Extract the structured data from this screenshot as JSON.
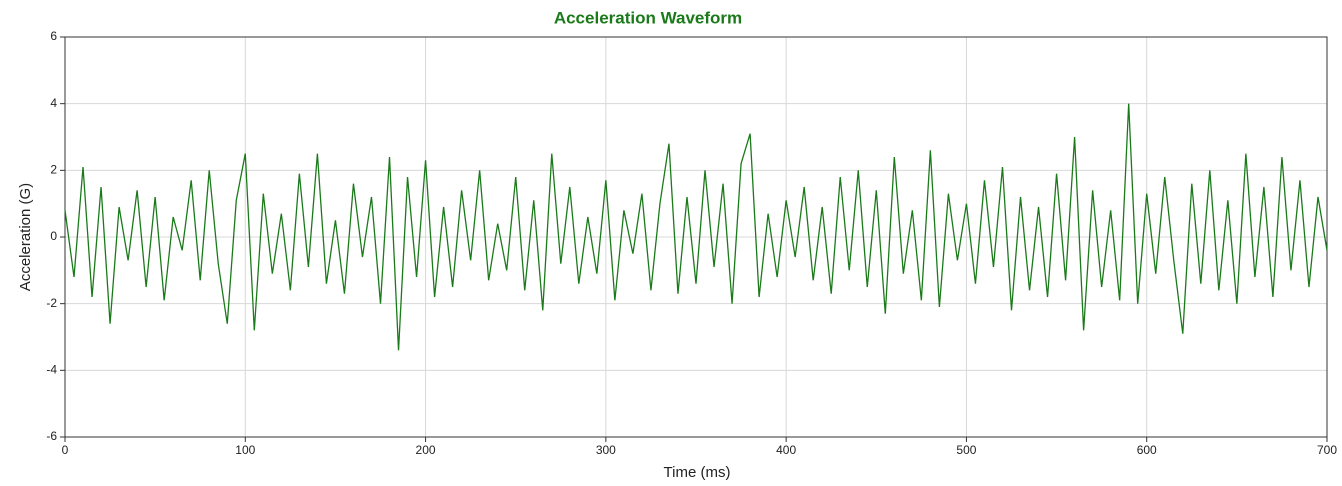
{
  "chart_data": {
    "type": "line",
    "title": "Acceleration Waveform",
    "x_label": "Time (ms)",
    "y_label": "Acceleration (G)",
    "x": [
      0,
      5,
      10,
      15,
      20,
      25,
      30,
      35,
      40,
      45,
      50,
      55,
      60,
      65,
      70,
      75,
      80,
      85,
      90,
      95,
      100,
      105,
      110,
      115,
      120,
      125,
      130,
      135,
      140,
      145,
      150,
      155,
      160,
      165,
      170,
      175,
      180,
      185,
      190,
      195,
      200,
      205,
      210,
      215,
      220,
      225,
      230,
      235,
      240,
      245,
      250,
      255,
      260,
      265,
      270,
      275,
      280,
      285,
      290,
      295,
      300,
      305,
      310,
      315,
      320,
      325,
      330,
      335,
      340,
      345,
      350,
      355,
      360,
      365,
      370,
      375,
      380,
      385,
      390,
      395,
      400,
      405,
      410,
      415,
      420,
      425,
      430,
      435,
      440,
      445,
      450,
      455,
      460,
      465,
      470,
      475,
      480,
      485,
      490,
      495,
      500,
      505,
      510,
      515,
      520,
      525,
      530,
      535,
      540,
      545,
      550,
      555,
      560,
      565,
      570,
      575,
      580,
      585,
      590,
      595,
      600,
      605,
      610,
      615,
      620,
      625,
      630,
      635,
      640,
      645,
      650,
      655,
      660,
      665,
      670,
      675,
      680,
      685,
      690,
      695,
      700
    ],
    "series": [
      {
        "name": "Acceleration",
        "color": "#1a7a1a",
        "values": [
          0.8,
          -1.2,
          2.1,
          -1.8,
          1.5,
          -2.6,
          0.9,
          -0.7,
          1.4,
          -1.5,
          1.2,
          -1.9,
          0.6,
          -0.4,
          1.7,
          -1.3,
          2.0,
          -0.8,
          -2.6,
          1.1,
          2.5,
          -2.8,
          1.3,
          -1.1,
          0.7,
          -1.6,
          1.9,
          -0.9,
          2.5,
          -1.4,
          0.5,
          -1.7,
          1.6,
          -0.6,
          1.2,
          -2.0,
          2.4,
          -3.4,
          1.8,
          -1.2,
          2.3,
          -1.8,
          0.9,
          -1.5,
          1.4,
          -0.7,
          2.0,
          -1.3,
          0.4,
          -1.0,
          1.8,
          -1.6,
          1.1,
          -2.2,
          2.5,
          -0.8,
          1.5,
          -1.4,
          0.6,
          -1.1,
          1.7,
          -1.9,
          0.8,
          -0.5,
          1.3,
          -1.6,
          1.0,
          2.8,
          -1.7,
          1.2,
          -1.4,
          2.0,
          -0.9,
          1.6,
          -2.0,
          2.2,
          3.1,
          -1.8,
          0.7,
          -1.2,
          1.1,
          -0.6,
          1.5,
          -1.3,
          0.9,
          -1.7,
          1.8,
          -1.0,
          2.0,
          -1.5,
          1.4,
          -2.3,
          2.4,
          -1.1,
          0.8,
          -1.9,
          2.6,
          -2.1,
          1.3,
          -0.7,
          1.0,
          -1.4,
          1.7,
          -0.9,
          2.1,
          -2.2,
          1.2,
          -1.6,
          0.9,
          -1.8,
          1.9,
          -1.3,
          3.0,
          -2.8,
          1.4,
          -1.5,
          0.8,
          -1.9,
          4.0,
          -2.0,
          1.3,
          -1.1,
          1.8,
          -0.7,
          -2.9,
          1.6,
          -1.4,
          2.0,
          -1.6,
          1.1,
          -2.0,
          2.5,
          -1.2,
          1.5,
          -1.8,
          2.4,
          -1.0,
          1.7,
          -1.5,
          1.2,
          -0.4
        ]
      }
    ],
    "xlim": [
      0,
      700
    ],
    "xticks": [
      0,
      100,
      200,
      300,
      400,
      500,
      600,
      700
    ],
    "ylim": [
      -6,
      6
    ],
    "yticks": [
      -6,
      -4,
      -2,
      0,
      2,
      4,
      6
    ],
    "grid": true
  }
}
